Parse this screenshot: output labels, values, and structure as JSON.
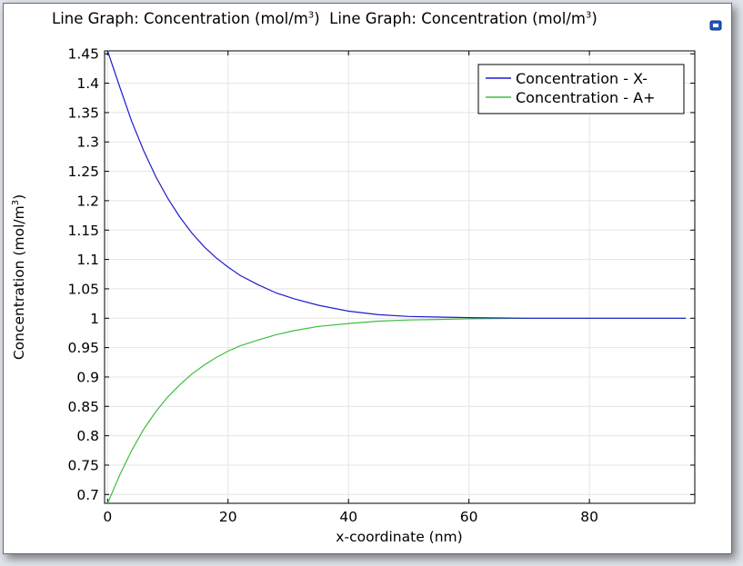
{
  "title": {
    "part1": "Line Graph: Concentration (mol/m",
    "part1_sup": "3",
    "part1_end": ")",
    "part2": "Line Graph: Concentration (mol/m",
    "part2_sup": "3",
    "part2_end": ")"
  },
  "corner_icon": "window-restore-icon",
  "colors": {
    "series_x": "#1c1ccf",
    "series_a": "#3cbf3c",
    "grid": "#e4e4e4",
    "corner_icon": "#1f58c4"
  },
  "chart_data": {
    "type": "line",
    "title": "Line Graph: Concentration (mol/m3) Line Graph: Concentration (mol/m3)",
    "xlabel": "x-coordinate (nm)",
    "ylabel": "Concentration (mol/m",
    "ylabel_sup": "3",
    "ylabel_end": ")",
    "xlim": [
      -0.5,
      97.5
    ],
    "ylim": [
      0.685,
      1.455
    ],
    "grid": true,
    "legend_position": "top-right",
    "x_ticks": [
      {
        "value": 0,
        "label": "0"
      },
      {
        "value": 20,
        "label": "20"
      },
      {
        "value": 40,
        "label": "40"
      },
      {
        "value": 60,
        "label": "60"
      },
      {
        "value": 80,
        "label": "80"
      }
    ],
    "y_ticks": [
      {
        "value": 1.45,
        "label": "1.45"
      },
      {
        "value": 1.4,
        "label": "1.4"
      },
      {
        "value": 1.35,
        "label": "1.35"
      },
      {
        "value": 1.3,
        "label": "1.3"
      },
      {
        "value": 1.25,
        "label": "1.25"
      },
      {
        "value": 1.2,
        "label": "1.2"
      },
      {
        "value": 1.15,
        "label": "1.15"
      },
      {
        "value": 1.1,
        "label": "1.1"
      },
      {
        "value": 1.05,
        "label": "1.05"
      },
      {
        "value": 1,
        "label": "1"
      },
      {
        "value": 0.95,
        "label": "0.95"
      },
      {
        "value": 0.9,
        "label": "0.9"
      },
      {
        "value": 0.85,
        "label": "0.85"
      },
      {
        "value": 0.8,
        "label": "0.8"
      },
      {
        "value": 0.75,
        "label": "0.75"
      },
      {
        "value": 0.7,
        "label": "0.7"
      }
    ],
    "series": [
      {
        "name": "Concentration - X-",
        "x": [
          0,
          2,
          4,
          6,
          8,
          10,
          12,
          14,
          16,
          18,
          20,
          22,
          25,
          28,
          31,
          35,
          40,
          45,
          50,
          55,
          60,
          70,
          80,
          90,
          96
        ],
        "y": [
          1.455,
          1.394,
          1.335,
          1.285,
          1.241,
          1.204,
          1.172,
          1.145,
          1.122,
          1.103,
          1.087,
          1.073,
          1.057,
          1.043,
          1.033,
          1.022,
          1.012,
          1.006,
          1.003,
          1.002,
          1.001,
          1.0,
          1.0,
          1.0,
          1.0
        ]
      },
      {
        "name": "Concentration - A+",
        "x": [
          0,
          2,
          4,
          6,
          8,
          10,
          12,
          14,
          16,
          18,
          20,
          22,
          25,
          28,
          31,
          35,
          40,
          45,
          50,
          55,
          60,
          70,
          80,
          90,
          96
        ],
        "y": [
          0.685,
          0.733,
          0.775,
          0.811,
          0.841,
          0.866,
          0.887,
          0.905,
          0.92,
          0.933,
          0.944,
          0.953,
          0.963,
          0.972,
          0.979,
          0.986,
          0.991,
          0.995,
          0.997,
          0.998,
          0.999,
          1.0,
          1.0,
          1.0,
          1.0
        ]
      }
    ]
  }
}
